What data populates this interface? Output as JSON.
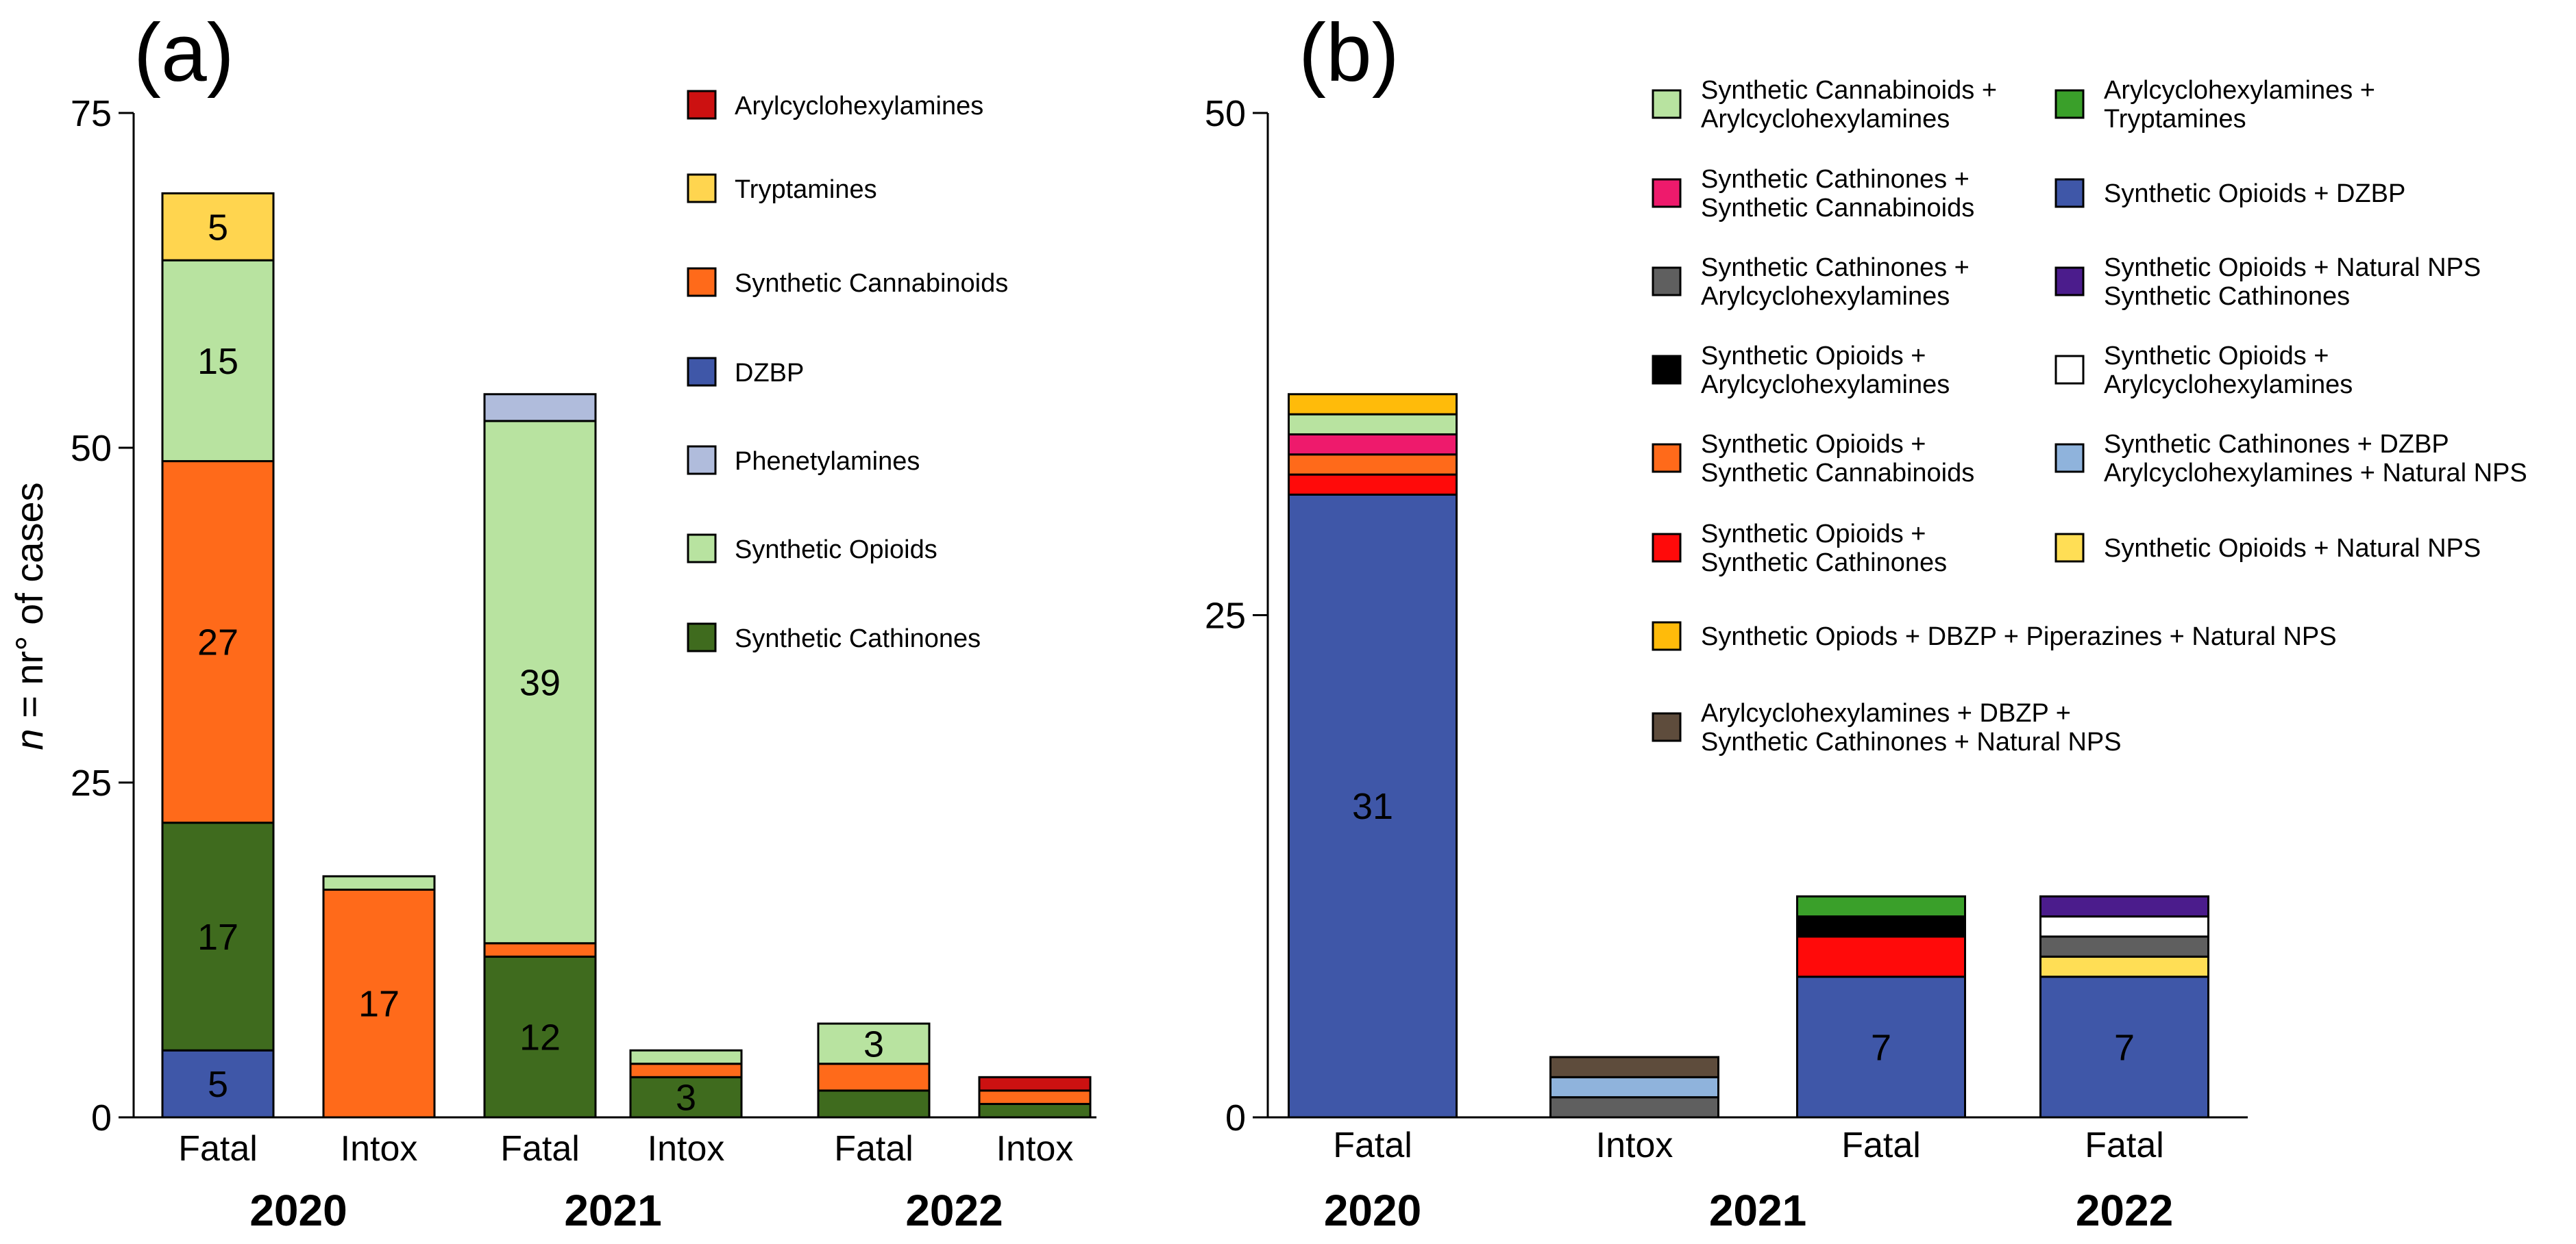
{
  "chart_data": [
    {
      "type": "bar",
      "stacked": true,
      "panel": "(a)",
      "ylabel_italic": "n",
      "ylabel_rest": " = nr° of cases",
      "ylim": [
        0,
        75
      ],
      "yticks": [
        "0",
        "25",
        "50",
        "75"
      ],
      "categories": [
        "Fatal",
        "Intox",
        "Fatal",
        "Intox",
        "Fatal",
        "Intox"
      ],
      "years": [
        "2020",
        "2021",
        "2022"
      ],
      "colors": {
        "Synthetic Cathinones": "#3f6b1e",
        "Synthetic Opioids": "#b8e3a0",
        "Phenetylamines": "#b0bcdc",
        "DZBP": "#3f57a8",
        "Synthetic Cannabinoids": "#ff6a1a",
        "Tryptamines": "#ffd54f",
        "Arylcyclohexylamines": "#cc1111"
      },
      "legend_order": [
        "Arylcyclohexylamines",
        "Tryptamines",
        "Synthetic Cannabinoids",
        "DZBP",
        "Phenetylamines",
        "Synthetic Opioids",
        "Synthetic Cathinones"
      ],
      "bars": [
        {
          "segments": [
            {
              "series": "DZBP",
              "value": 5,
              "label": "5"
            },
            {
              "series": "Synthetic Cathinones",
              "value": 17,
              "label": "17"
            },
            {
              "series": "Synthetic Cannabinoids",
              "value": 27,
              "label": "27"
            },
            {
              "series": "Synthetic Opioids",
              "value": 15,
              "label": "15"
            },
            {
              "series": "Tryptamines",
              "value": 5,
              "label": "5"
            }
          ]
        },
        {
          "segments": [
            {
              "series": "Synthetic Cannabinoids",
              "value": 17,
              "label": "17"
            },
            {
              "series": "Synthetic Opioids",
              "value": 1
            }
          ]
        },
        {
          "segments": [
            {
              "series": "Synthetic Cathinones",
              "value": 12,
              "label": "12"
            },
            {
              "series": "Synthetic Cannabinoids",
              "value": 1
            },
            {
              "series": "Synthetic Opioids",
              "value": 39,
              "label": "39"
            },
            {
              "series": "Phenetylamines",
              "value": 2
            }
          ]
        },
        {
          "segments": [
            {
              "series": "Synthetic Cathinones",
              "value": 3,
              "label": "3"
            },
            {
              "series": "Synthetic Cannabinoids",
              "value": 1
            },
            {
              "series": "Synthetic Opioids",
              "value": 1
            }
          ]
        },
        {
          "segments": [
            {
              "series": "Synthetic Cathinones",
              "value": 2
            },
            {
              "series": "Synthetic Cannabinoids",
              "value": 2
            },
            {
              "series": "Synthetic Opioids",
              "value": 3,
              "label": "3"
            }
          ]
        },
        {
          "segments": [
            {
              "series": "Synthetic Cathinones",
              "value": 1
            },
            {
              "series": "Synthetic Cannabinoids",
              "value": 1
            },
            {
              "series": "Arylcyclohexylamines",
              "value": 1
            }
          ]
        }
      ]
    },
    {
      "type": "bar",
      "stacked": true,
      "panel": "(b)",
      "ylim": [
        0,
        50
      ],
      "yticks": [
        "0",
        "25",
        "50"
      ],
      "categories": [
        "Fatal",
        "Intox",
        "Fatal",
        "Fatal"
      ],
      "years": [
        "2020",
        "2021",
        "2022"
      ],
      "legend": [
        {
          "lines": [
            "Synthetic Cannabinoids +",
            "Arylcyclohexylamines"
          ],
          "color": "#b8e3a0"
        },
        {
          "lines": [
            "Arylcyclohexylamines +",
            "Tryptamines"
          ],
          "color": "#3aa02a"
        },
        {
          "lines": [
            "Synthetic Cathinones +",
            "Synthetic Cannabinoids"
          ],
          "color": "#ee1a6c"
        },
        {
          "lines": [
            "Synthetic Opioids + DZBP"
          ],
          "color": "#3f57a8"
        },
        {
          "lines": [
            "Synthetic Cathinones +",
            "Arylcyclohexylamines"
          ],
          "color": "#5f5f5f"
        },
        {
          "lines": [
            "Synthetic Opioids + Natural NPS",
            "Synthetic Cathinones"
          ],
          "color": "#4b1c8c"
        },
        {
          "lines": [
            "Synthetic Opioids +",
            "Arylcyclohexylamines"
          ],
          "color": "#000000"
        },
        {
          "lines": [
            "Synthetic Opioids +",
            "Arylcyclohexylamines"
          ],
          "color": "#ffffff"
        },
        {
          "lines": [
            "Synthetic Opioids +",
            "Synthetic Cannabinoids"
          ],
          "color": "#ff6a1a"
        },
        {
          "lines": [
            "Synthetic Cathinones + DZBP",
            "Arylcyclohexylamines + Natural NPS"
          ],
          "color": "#8fb3dc"
        },
        {
          "lines": [
            "Synthetic Opioids +",
            "Synthetic Cathinones"
          ],
          "color": "#ff0a0a"
        },
        {
          "lines": [
            "Synthetic Opioids + Natural NPS"
          ],
          "color": "#ffde55"
        },
        {
          "lines": [
            "Synthetic Opiods + DBZP +  Piperazines + Natural NPS"
          ],
          "color": "#ffbb0a"
        },
        {
          "lines": [
            "Arylcyclohexylamines + DBZP +",
            "Synthetic Cathinones + Natural NPS"
          ],
          "color": "#5e4c3c"
        }
      ],
      "bars": [
        {
          "segments": [
            {
              "color": "#3f57a8",
              "value": 31,
              "label": "31"
            },
            {
              "color": "#ff0a0a",
              "value": 1
            },
            {
              "color": "#ff6a1a",
              "value": 1
            },
            {
              "color": "#ee1a6c",
              "value": 1
            },
            {
              "color": "#b8e3a0",
              "value": 1
            },
            {
              "color": "#ffbb0a",
              "value": 1
            }
          ]
        },
        {
          "segments": [
            {
              "color": "#5f5f5f",
              "value": 1
            },
            {
              "color": "#8fb3dc",
              "value": 1
            },
            {
              "color": "#5e4c3c",
              "value": 1
            }
          ]
        },
        {
          "segments": [
            {
              "color": "#3f57a8",
              "value": 7,
              "label": "7"
            },
            {
              "color": "#ff0a0a",
              "value": 2
            },
            {
              "color": "#000000",
              "value": 1
            },
            {
              "color": "#3aa02a",
              "value": 1
            }
          ]
        },
        {
          "segments": [
            {
              "color": "#3f57a8",
              "value": 7,
              "label": "7"
            },
            {
              "color": "#ffde55",
              "value": 1
            },
            {
              "color": "#5f5f5f",
              "value": 1
            },
            {
              "color": "#ffffff",
              "value": 1
            },
            {
              "color": "#4b1c8c",
              "value": 1
            }
          ]
        }
      ]
    }
  ]
}
